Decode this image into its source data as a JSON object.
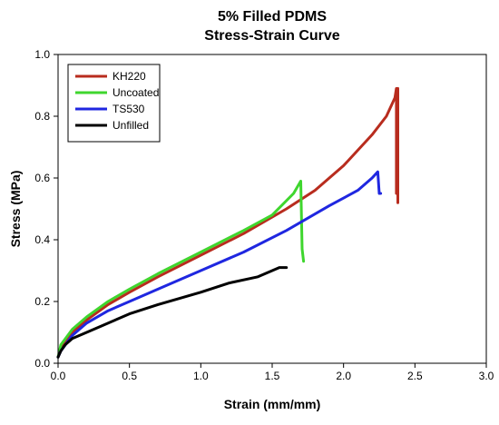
{
  "chart_data": {
    "type": "line",
    "title": "5% Filled PDMS",
    "subtitle": "Stress-Strain Curve",
    "xlabel": "Strain (mm/mm)",
    "ylabel": "Stress (MPa)",
    "xlim": [
      0.0,
      3.0
    ],
    "ylim": [
      0.0,
      1.0
    ],
    "xticks": [
      "0.0",
      "0.5",
      "1.0",
      "1.5",
      "2.0",
      "2.5",
      "3.0"
    ],
    "yticks": [
      "0.0",
      "0.2",
      "0.4",
      "0.6",
      "0.8",
      "1.0"
    ],
    "grid": false,
    "legend_position": "top-left",
    "series": [
      {
        "name": "KH220",
        "color": "#b82c1e",
        "x": [
          0.0,
          0.02,
          0.1,
          0.2,
          0.35,
          0.5,
          0.7,
          1.0,
          1.3,
          1.6,
          1.8,
          2.0,
          2.2,
          2.3,
          2.36,
          2.37,
          2.37,
          2.38,
          2.38
        ],
        "y": [
          0.02,
          0.05,
          0.1,
          0.14,
          0.19,
          0.23,
          0.28,
          0.35,
          0.42,
          0.5,
          0.56,
          0.64,
          0.74,
          0.8,
          0.86,
          0.89,
          0.55,
          0.89,
          0.52
        ]
      },
      {
        "name": "Uncoated",
        "color": "#3fd62e",
        "x": [
          0.0,
          0.02,
          0.1,
          0.2,
          0.35,
          0.5,
          0.7,
          1.0,
          1.3,
          1.5,
          1.65,
          1.7,
          1.71,
          1.72
        ],
        "y": [
          0.02,
          0.06,
          0.11,
          0.15,
          0.2,
          0.24,
          0.29,
          0.36,
          0.43,
          0.48,
          0.55,
          0.59,
          0.37,
          0.33
        ]
      },
      {
        "name": "TS530",
        "color": "#1f27e0",
        "x": [
          0.0,
          0.02,
          0.1,
          0.2,
          0.35,
          0.5,
          0.7,
          1.0,
          1.3,
          1.6,
          1.9,
          2.1,
          2.2,
          2.24,
          2.25,
          2.26
        ],
        "y": [
          0.02,
          0.04,
          0.09,
          0.13,
          0.17,
          0.2,
          0.24,
          0.3,
          0.36,
          0.43,
          0.51,
          0.56,
          0.6,
          0.62,
          0.55,
          0.55
        ]
      },
      {
        "name": "Unfilled",
        "color": "#000000",
        "x": [
          0.0,
          0.02,
          0.05,
          0.1,
          0.15,
          0.2,
          0.3,
          0.5,
          0.7,
          1.0,
          1.2,
          1.4,
          1.55,
          1.6
        ],
        "y": [
          0.02,
          0.04,
          0.06,
          0.08,
          0.09,
          0.1,
          0.12,
          0.16,
          0.19,
          0.23,
          0.26,
          0.28,
          0.31,
          0.31
        ]
      }
    ]
  }
}
